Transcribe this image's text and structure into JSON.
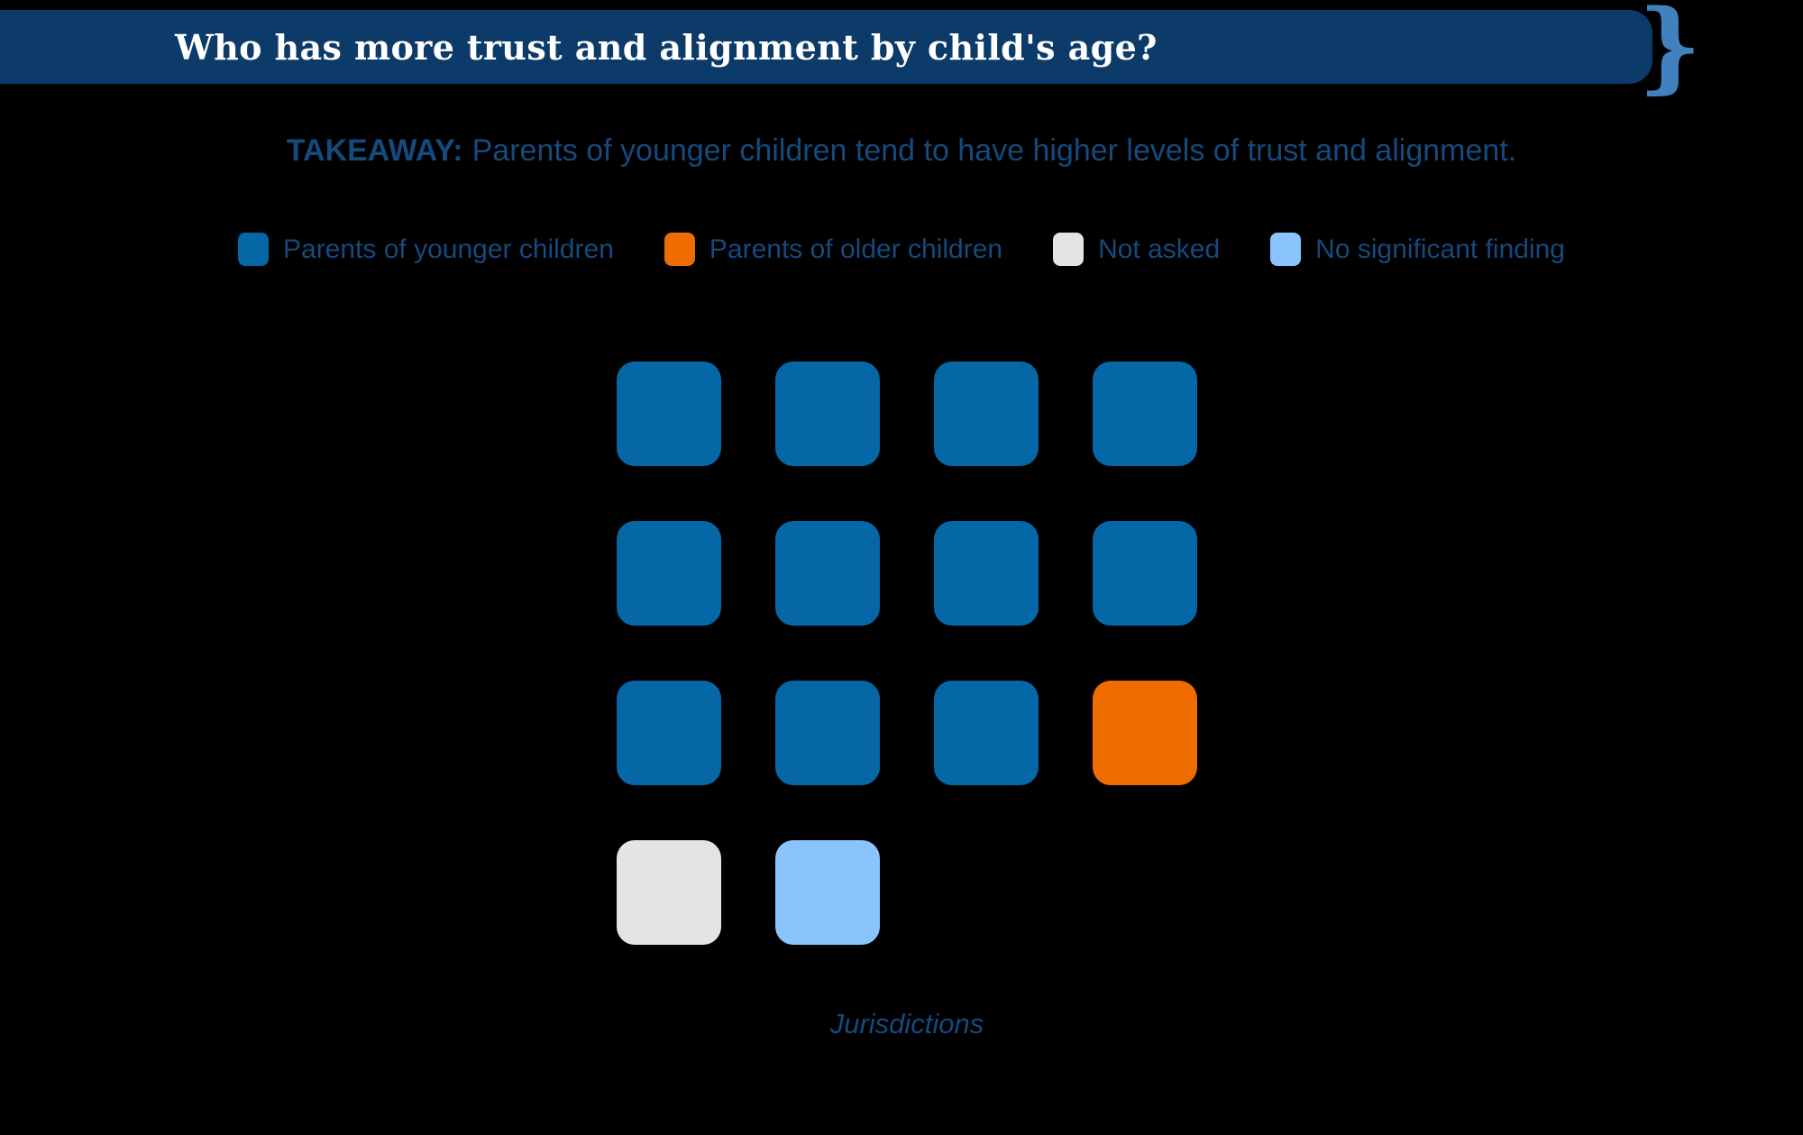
{
  "page": {
    "background_color": "#000000",
    "text_color": "#16497c"
  },
  "header": {
    "title": "Who has more trust and alignment by child's age?",
    "bar_color": "#0d3b69",
    "title_color": "#ffffff",
    "brace_glyph": "}",
    "brace_color": "#4181c0"
  },
  "takeaway": {
    "label": "TAKEAWAY:",
    "text": "Parents of younger children tend to have higher levels of trust and alignment."
  },
  "legend": [
    {
      "key": "younger",
      "label": "Parents of younger children",
      "color": "#0667a6"
    },
    {
      "key": "older",
      "label": "Parents of older children",
      "color": "#ef6d00"
    },
    {
      "key": "not-asked",
      "label": "Not asked",
      "color": "#e5e4e5"
    },
    {
      "key": "no-finding",
      "label": "No significant finding",
      "color": "#8ac4fc"
    }
  ],
  "chart_data": {
    "type": "waffle",
    "title": "Who has more trust and alignment by child's age?",
    "subtitle": "TAKEAWAY: Parents of younger children tend to have higher levels of trust and alignment.",
    "xlabel": "Jurisdictions",
    "legend_position": "top",
    "unit": "jurisdiction",
    "total_units": 14,
    "categories": [
      {
        "label": "Parents of younger children",
        "color": "#0667a6",
        "count": 11
      },
      {
        "label": "Parents of older children",
        "color": "#ef6d00",
        "count": 1
      },
      {
        "label": "Not asked",
        "color": "#e5e4e5",
        "count": 1
      },
      {
        "label": "No significant finding",
        "color": "#8ac4fc",
        "count": 1
      }
    ],
    "grid": {
      "columns": 4,
      "rows": 4,
      "cells": [
        "younger",
        "younger",
        "younger",
        "younger",
        "younger",
        "younger",
        "younger",
        "younger",
        "younger",
        "younger",
        "younger",
        "older",
        "not-asked",
        "no-finding"
      ]
    }
  }
}
